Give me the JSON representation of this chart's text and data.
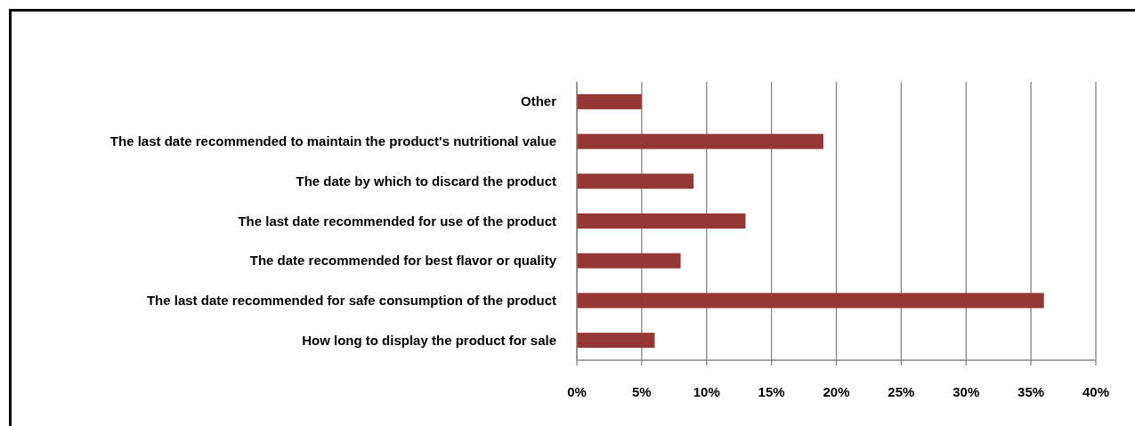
{
  "chart_data": {
    "type": "bar",
    "orientation": "horizontal",
    "categories": [
      "Other",
      "The last date recommended to maintain the product's nutritional value",
      "The date by which to discard the product",
      "The last date recommended for use of the product",
      "The date recommended for best flavor or quality",
      "The last date recommended for safe consumption of the product",
      "How long to display the product for sale"
    ],
    "values": [
      5,
      19,
      9,
      13,
      8,
      36,
      6
    ],
    "color": "#953735",
    "xlim": [
      0,
      40
    ],
    "xticks": [
      {
        "value": 0,
        "label": "0%"
      },
      {
        "value": 5,
        "label": "5%"
      },
      {
        "value": 10,
        "label": "10%"
      },
      {
        "value": 15,
        "label": "15%"
      },
      {
        "value": 20,
        "label": "20%"
      },
      {
        "value": 25,
        "label": "25%"
      },
      {
        "value": 30,
        "label": "30%"
      },
      {
        "value": 35,
        "label": "35%"
      },
      {
        "value": 40,
        "label": "40%"
      }
    ],
    "grid": "x"
  }
}
